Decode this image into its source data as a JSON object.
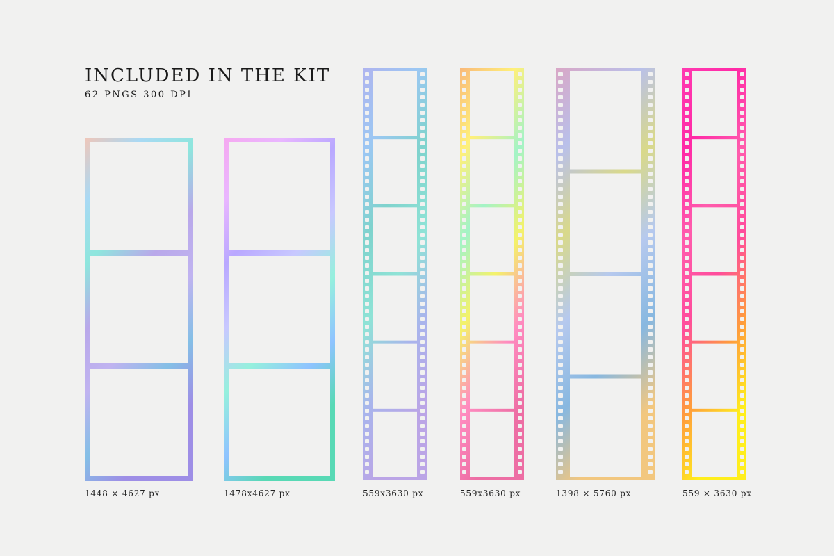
{
  "heading": {
    "title": "INCLUDED IN THE KIT",
    "subtitle": "62 PNGS 300 DPI"
  },
  "items": [
    {
      "label": "1448 × 4627 px",
      "kind": "photo-strip",
      "frames": 3,
      "palette": [
        "#f0c6b8",
        "#a9d9f4",
        "#8ee6dd",
        "#b9a8ea",
        "#c0b3f0",
        "#84bfe6",
        "#9e8ee6"
      ]
    },
    {
      "label": "1478x4627 px",
      "kind": "photo-strip",
      "frames": 3,
      "palette": [
        "#f6a9f0",
        "#e9b6ff",
        "#b9a8ff",
        "#c8c8ff",
        "#95f0dd",
        "#8fc3ff",
        "#58d9b5"
      ]
    },
    {
      "label": "559x3630 px",
      "kind": "film-35mm",
      "frames": 6,
      "palette": [
        "#b0b4ef",
        "#9cc7f3",
        "#7fd3cd",
        "#8fe3d6",
        "#a9b4ec",
        "#bba5e6"
      ]
    },
    {
      "label": "559x3630 px",
      "kind": "film-35mm",
      "frames": 6,
      "palette": [
        "#f9b97a",
        "#fff07a",
        "#a3f3c7",
        "#f4f26a",
        "#ff8cc0",
        "#ed6ea4"
      ]
    },
    {
      "label": "1398 × 5760 px",
      "kind": "film-wide",
      "frames": 4,
      "palette": [
        "#d9a7c6",
        "#b9c0ea",
        "#d9d98a",
        "#b6c9ee",
        "#88b8e0",
        "#f2c77f"
      ]
    },
    {
      "label": "559 × 3630 px",
      "kind": "film-35mm",
      "frames": 6,
      "palette": [
        "#ff3ab1",
        "#ff2aa6",
        "#ff5cad",
        "#ff4d9c",
        "#ff9b3d",
        "#ffee1d"
      ]
    }
  ]
}
